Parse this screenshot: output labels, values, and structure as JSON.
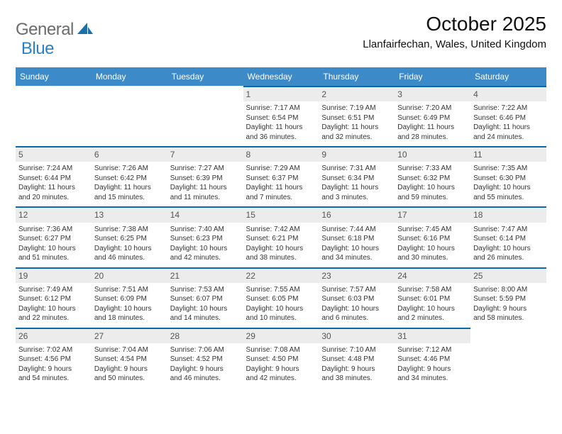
{
  "logo": {
    "text1": "General",
    "text2": "Blue",
    "color1": "#6b6b6b",
    "color2": "#2a7fc9",
    "shape_color": "#1c6fa8"
  },
  "title": "October 2025",
  "location": "Llanfairfechan, Wales, United Kingdom",
  "header_bg": "#3d8ac9",
  "header_text": "#ffffff",
  "divider_color": "#0a6aa8",
  "daynum_bg": "#ececec",
  "body_text": "#333333",
  "days": [
    "Sunday",
    "Monday",
    "Tuesday",
    "Wednesday",
    "Thursday",
    "Friday",
    "Saturday"
  ],
  "weeks": [
    [
      null,
      null,
      null,
      {
        "n": "1",
        "sr": "7:17 AM",
        "ss": "6:54 PM",
        "dl": "11 hours",
        "dl2": "and 36 minutes."
      },
      {
        "n": "2",
        "sr": "7:19 AM",
        "ss": "6:51 PM",
        "dl": "11 hours",
        "dl2": "and 32 minutes."
      },
      {
        "n": "3",
        "sr": "7:20 AM",
        "ss": "6:49 PM",
        "dl": "11 hours",
        "dl2": "and 28 minutes."
      },
      {
        "n": "4",
        "sr": "7:22 AM",
        "ss": "6:46 PM",
        "dl": "11 hours",
        "dl2": "and 24 minutes."
      }
    ],
    [
      {
        "n": "5",
        "sr": "7:24 AM",
        "ss": "6:44 PM",
        "dl": "11 hours",
        "dl2": "and 20 minutes."
      },
      {
        "n": "6",
        "sr": "7:26 AM",
        "ss": "6:42 PM",
        "dl": "11 hours",
        "dl2": "and 15 minutes."
      },
      {
        "n": "7",
        "sr": "7:27 AM",
        "ss": "6:39 PM",
        "dl": "11 hours",
        "dl2": "and 11 minutes."
      },
      {
        "n": "8",
        "sr": "7:29 AM",
        "ss": "6:37 PM",
        "dl": "11 hours",
        "dl2": "and 7 minutes."
      },
      {
        "n": "9",
        "sr": "7:31 AM",
        "ss": "6:34 PM",
        "dl": "11 hours",
        "dl2": "and 3 minutes."
      },
      {
        "n": "10",
        "sr": "7:33 AM",
        "ss": "6:32 PM",
        "dl": "10 hours",
        "dl2": "and 59 minutes."
      },
      {
        "n": "11",
        "sr": "7:35 AM",
        "ss": "6:30 PM",
        "dl": "10 hours",
        "dl2": "and 55 minutes."
      }
    ],
    [
      {
        "n": "12",
        "sr": "7:36 AM",
        "ss": "6:27 PM",
        "dl": "10 hours",
        "dl2": "and 51 minutes."
      },
      {
        "n": "13",
        "sr": "7:38 AM",
        "ss": "6:25 PM",
        "dl": "10 hours",
        "dl2": "and 46 minutes."
      },
      {
        "n": "14",
        "sr": "7:40 AM",
        "ss": "6:23 PM",
        "dl": "10 hours",
        "dl2": "and 42 minutes."
      },
      {
        "n": "15",
        "sr": "7:42 AM",
        "ss": "6:21 PM",
        "dl": "10 hours",
        "dl2": "and 38 minutes."
      },
      {
        "n": "16",
        "sr": "7:44 AM",
        "ss": "6:18 PM",
        "dl": "10 hours",
        "dl2": "and 34 minutes."
      },
      {
        "n": "17",
        "sr": "7:45 AM",
        "ss": "6:16 PM",
        "dl": "10 hours",
        "dl2": "and 30 minutes."
      },
      {
        "n": "18",
        "sr": "7:47 AM",
        "ss": "6:14 PM",
        "dl": "10 hours",
        "dl2": "and 26 minutes."
      }
    ],
    [
      {
        "n": "19",
        "sr": "7:49 AM",
        "ss": "6:12 PM",
        "dl": "10 hours",
        "dl2": "and 22 minutes."
      },
      {
        "n": "20",
        "sr": "7:51 AM",
        "ss": "6:09 PM",
        "dl": "10 hours",
        "dl2": "and 18 minutes."
      },
      {
        "n": "21",
        "sr": "7:53 AM",
        "ss": "6:07 PM",
        "dl": "10 hours",
        "dl2": "and 14 minutes."
      },
      {
        "n": "22",
        "sr": "7:55 AM",
        "ss": "6:05 PM",
        "dl": "10 hours",
        "dl2": "and 10 minutes."
      },
      {
        "n": "23",
        "sr": "7:57 AM",
        "ss": "6:03 PM",
        "dl": "10 hours",
        "dl2": "and 6 minutes."
      },
      {
        "n": "24",
        "sr": "7:58 AM",
        "ss": "6:01 PM",
        "dl": "10 hours",
        "dl2": "and 2 minutes."
      },
      {
        "n": "25",
        "sr": "8:00 AM",
        "ss": "5:59 PM",
        "dl": "9 hours",
        "dl2": "and 58 minutes."
      }
    ],
    [
      {
        "n": "26",
        "sr": "7:02 AM",
        "ss": "4:56 PM",
        "dl": "9 hours",
        "dl2": "and 54 minutes."
      },
      {
        "n": "27",
        "sr": "7:04 AM",
        "ss": "4:54 PM",
        "dl": "9 hours",
        "dl2": "and 50 minutes."
      },
      {
        "n": "28",
        "sr": "7:06 AM",
        "ss": "4:52 PM",
        "dl": "9 hours",
        "dl2": "and 46 minutes."
      },
      {
        "n": "29",
        "sr": "7:08 AM",
        "ss": "4:50 PM",
        "dl": "9 hours",
        "dl2": "and 42 minutes."
      },
      {
        "n": "30",
        "sr": "7:10 AM",
        "ss": "4:48 PM",
        "dl": "9 hours",
        "dl2": "and 38 minutes."
      },
      {
        "n": "31",
        "sr": "7:12 AM",
        "ss": "4:46 PM",
        "dl": "9 hours",
        "dl2": "and 34 minutes."
      },
      null
    ]
  ]
}
